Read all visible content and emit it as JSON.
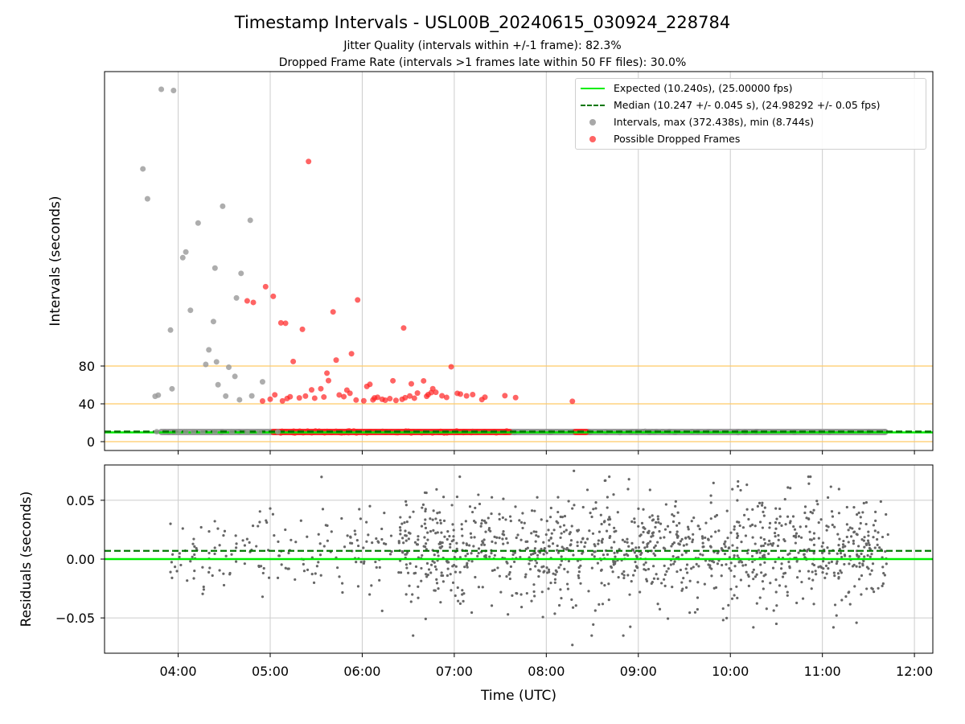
{
  "figure": {
    "title": "Timestamp Intervals - USL00B_20240615_030924_228784",
    "subtitle_1": "Jitter Quality (intervals within +/-1 frame): 82.3%",
    "subtitle_2": "Dropped Frame Rate (intervals >1 frames late within 50 FF files): 30.0%"
  },
  "colors": {
    "expected": "#00ee00",
    "median": "#007700",
    "intervals": "#999999",
    "dropped": "#ff2222",
    "threshold": "#ffc966",
    "residual": "#666666",
    "grid": "#cccccc"
  },
  "chart_data": [
    {
      "type": "scatter",
      "panel": "top",
      "ylabel": "Intervals (seconds)",
      "yticks": [
        "0",
        "40",
        "80"
      ],
      "ytick_values": [
        0,
        40,
        80
      ],
      "xlim": [
        "03:12",
        "12:12"
      ],
      "grid": true,
      "legend_position": "upper right",
      "hlines": [
        {
          "name": "Expected (10.240s), (25.00000 fps)",
          "y": 10.24,
          "style": "solid"
        },
        {
          "name": "Median (10.247 +/- 0.045 s), (24.98292 +/- 0.05 fps)",
          "y": 10.247,
          "style": "dashed"
        },
        {
          "name": "threshold-0",
          "y": 0,
          "style": "threshold"
        },
        {
          "name": "threshold-40",
          "y": 40,
          "style": "threshold"
        },
        {
          "name": "threshold-80",
          "y": 80,
          "style": "threshold"
        }
      ],
      "series": [
        {
          "name": "Intervals, max (372.438s), min (8.744s)",
          "points": [
            [
              "03:49",
              372.4
            ],
            [
              "03:57",
              371.1
            ],
            [
              "03:37",
              288.3
            ],
            [
              "03:40",
              256.7
            ],
            [
              "04:05",
              200.5
            ],
            [
              "04:03",
              194.5
            ],
            [
              "04:24",
              183.5
            ],
            [
              "04:23",
              127.0
            ],
            [
              "04:38",
              151.9
            ],
            [
              "04:20",
              97.1
            ],
            [
              "04:25",
              84.4
            ],
            [
              "04:18",
              81.7
            ],
            [
              "04:33",
              78.7
            ],
            [
              "03:55",
              118.0
            ],
            [
              "04:08",
              138.9
            ],
            [
              "04:13",
              231.1
            ],
            [
              "04:29",
              248.8
            ],
            [
              "04:41",
              177.9
            ],
            [
              "04:47",
              234.0
            ],
            [
              "04:55",
              63.3
            ],
            [
              "04:26",
              60.2
            ],
            [
              "04:31",
              48.2
            ],
            [
              "03:56",
              55.9
            ],
            [
              "04:37",
              69.0
            ],
            [
              "04:48",
              48.4
            ],
            [
              "03:47",
              49.2
            ],
            [
              "03:45",
              48.0
            ],
            [
              "04:40",
              44.3
            ],
            [
              "03:46",
              10.5
            ],
            [
              "04:00",
              10.3
            ],
            [
              "04:05",
              10.2
            ],
            [
              "04:10",
              10.4
            ],
            [
              "04:16",
              10.1
            ],
            [
              "04:24",
              10.3
            ],
            [
              "04:35",
              10.2
            ],
            [
              "04:45",
              10.4
            ],
            [
              "04:53",
              10.2
            ],
            [
              "05:05",
              10.3
            ]
          ]
        },
        {
          "name": "Possible Dropped Frames",
          "points": [
            [
              "05:25",
              296.1
            ],
            [
              "04:57",
              163.8
            ],
            [
              "05:02",
              153.6
            ],
            [
              "05:10",
              125.2
            ],
            [
              "05:15",
              84.8
            ],
            [
              "04:49",
              147.2
            ],
            [
              "04:45",
              148.8
            ],
            [
              "05:07",
              125.6
            ],
            [
              "05:21",
              118.8
            ],
            [
              "05:41",
              137.2
            ],
            [
              "05:53",
              93.0
            ],
            [
              "05:57",
              149.8
            ],
            [
              "06:20",
              64.4
            ],
            [
              "06:27",
              120.2
            ],
            [
              "06:40",
              64.3
            ],
            [
              "06:48",
              52.2
            ],
            [
              "06:43",
              49.8
            ],
            [
              "06:58",
              79.2
            ],
            [
              "07:08",
              48.4
            ],
            [
              "05:27",
              54.8
            ],
            [
              "05:33",
              56.0
            ],
            [
              "05:37",
              72.5
            ],
            [
              "05:43",
              86.3
            ],
            [
              "05:50",
              54.5
            ],
            [
              "05:56",
              44.0
            ],
            [
              "06:03",
              58.4
            ],
            [
              "06:08",
              46.3
            ],
            [
              "06:13",
              44.8
            ],
            [
              "06:18",
              45.5
            ],
            [
              "06:22",
              43.6
            ],
            [
              "06:28",
              46.5
            ],
            [
              "06:36",
              51.4
            ],
            [
              "06:52",
              48.5
            ],
            [
              "07:04",
              50.3
            ],
            [
              "07:12",
              49.8
            ],
            [
              "07:20",
              47.0
            ],
            [
              "07:33",
              48.6
            ],
            [
              "07:40",
              46.6
            ],
            [
              "08:17",
              42.7
            ],
            [
              "05:13",
              47.5
            ],
            [
              "05:19",
              46.3
            ],
            [
              "05:23",
              48.2
            ],
            [
              "05:29",
              46.0
            ],
            [
              "05:35",
              47.2
            ],
            [
              "05:45",
              49.4
            ],
            [
              "05:48",
              47.6
            ],
            [
              "06:01",
              43.2
            ],
            [
              "06:07",
              44.2
            ],
            [
              "06:10",
              46.9
            ],
            [
              "06:15",
              43.8
            ],
            [
              "06:26",
              44.8
            ],
            [
              "06:31",
              48.3
            ],
            [
              "06:34",
              46.0
            ],
            [
              "06:42",
              48.0
            ],
            [
              "06:45",
              51.9
            ],
            [
              "06:55",
              46.8
            ],
            [
              "07:18",
              44.5
            ],
            [
              "04:55",
              43.0
            ],
            [
              "05:00",
              44.9
            ],
            [
              "05:03",
              49.5
            ],
            [
              "05:08",
              43.1
            ],
            [
              "05:11",
              45.6
            ],
            [
              "05:38",
              64.6
            ],
            [
              "05:52",
              51.2
            ],
            [
              "06:05",
              60.6
            ],
            [
              "06:32",
              61.2
            ],
            [
              "06:46",
              56.0
            ],
            [
              "07:02",
              51.1
            ]
          ]
        }
      ],
      "dense_band": {
        "from": "03:47",
        "to": "11:43",
        "y": 10.24,
        "dropped_from": "05:00",
        "dropped_to": "07:38",
        "dropped_extra_from": "08:17",
        "dropped_extra_to": "08:28"
      }
    },
    {
      "type": "scatter",
      "panel": "bottom",
      "xlabel": "Time (UTC)",
      "ylabel": "Residuals (seconds)",
      "yticks": [
        "0.05",
        "0.00",
        "−0.05"
      ],
      "ytick_values": [
        0.05,
        0.0,
        -0.05
      ],
      "ylim": [
        -0.08,
        0.08
      ],
      "xticks": [
        "04:00",
        "05:00",
        "06:00",
        "07:00",
        "08:00",
        "09:00",
        "10:00",
        "11:00",
        "12:00"
      ],
      "xlim": [
        "03:12",
        "12:12"
      ],
      "grid": true,
      "hlines": [
        {
          "name": "expected",
          "y": 0.0,
          "style": "solid"
        },
        {
          "name": "median",
          "y": 0.007,
          "style": "dashed"
        }
      ],
      "residual_spread": {
        "from": "03:55",
        "to": "11:43",
        "mean": 0.007,
        "std": 0.022,
        "count": 1700
      },
      "outliers": [
        [
          "03:55",
          0.03
        ],
        [
          "03:55",
          -0.011
        ],
        [
          "03:56",
          -0.016
        ],
        [
          "04:03",
          0.026
        ],
        [
          "04:15",
          0.027
        ],
        [
          "04:45",
          0.017
        ],
        [
          "04:52",
          0.028
        ],
        [
          "04:54",
          -0.006
        ],
        [
          "04:55",
          -0.032
        ],
        [
          "05:00",
          0.043
        ],
        [
          "05:05",
          -0.016
        ],
        [
          "05:24",
          0.019
        ],
        [
          "08:17",
          -0.073
        ],
        [
          "08:18",
          0.075
        ],
        [
          "10:05",
          0.066
        ],
        [
          "10:15",
          -0.058
        ],
        [
          "10:30",
          -0.055
        ],
        [
          "07:35",
          -0.047
        ],
        [
          "06:05",
          0.045
        ],
        [
          "06:13",
          -0.044
        ]
      ]
    }
  ]
}
